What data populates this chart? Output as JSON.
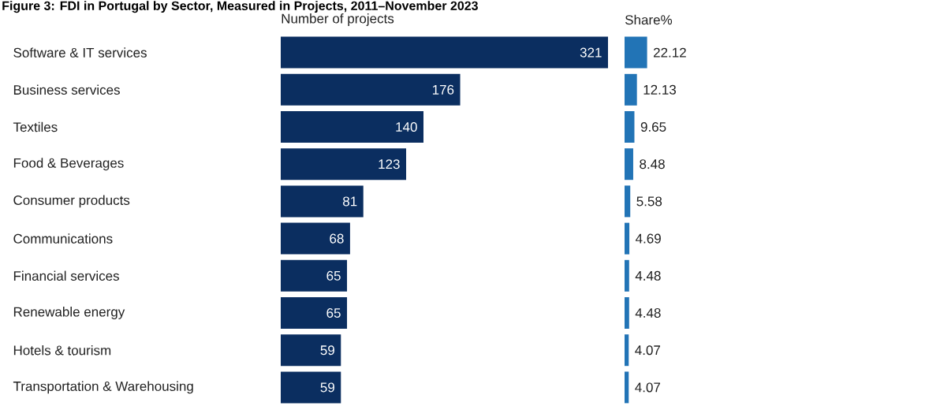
{
  "chart_data": [
    {
      "type": "bar",
      "orientation": "horizontal",
      "title": "Figure 3: FDI in Portugal by Sector, Measured in Projects, 2011–November 2023",
      "subtitle": "Number of projects",
      "categories": [
        "Software & IT services",
        "Business services",
        "Textiles",
        "Food & Beverages",
        "Consumer products",
        "Communications",
        "Financial services",
        "Renewable energy",
        "Hotels & tourism",
        "Transportation & Warehousing"
      ],
      "values": [
        321,
        176,
        140,
        123,
        81,
        68,
        65,
        65,
        59,
        59
      ],
      "color": "#0b2e60",
      "data_labels": true,
      "tick_labels": "y"
    },
    {
      "type": "bar",
      "orientation": "horizontal",
      "title": "Share%",
      "values": [
        22.12,
        12.13,
        9.65,
        8.48,
        5.58,
        4.69,
        4.48,
        4.48,
        4.07,
        4.07
      ],
      "color": "#2274b6",
      "data_labels": true,
      "tick_labels": false
    }
  ]
}
